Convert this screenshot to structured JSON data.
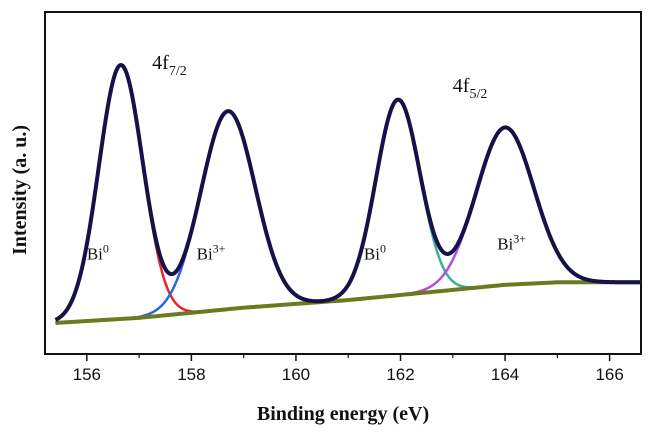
{
  "chart_data": {
    "type": "line",
    "title": "",
    "xlabel": "Binding energy (eV)",
    "ylabel": "Intensity (a. u.)",
    "xlim": [
      155.2,
      166.6
    ],
    "ylim": [
      0,
      1.15
    ],
    "xticks": [
      156,
      158,
      160,
      162,
      164,
      166
    ],
    "grid": false,
    "yticks_visible": false,
    "peaks": [
      {
        "name": "Bi0 4f7/2",
        "center": 156.65,
        "height": 1.0,
        "sigma": 0.42,
        "color": "#e8252c"
      },
      {
        "name": "Bi3+ 4f7/2",
        "center": 158.7,
        "height": 0.78,
        "sigma": 0.52,
        "color": "#2f64e0"
      },
      {
        "name": "Bi0 4f5/2",
        "center": 161.95,
        "height": 0.77,
        "sigma": 0.42,
        "color": "#3fae9a"
      },
      {
        "name": "Bi3+ 4f5/2",
        "center": 164.0,
        "height": 0.62,
        "sigma": 0.55,
        "color": "#b14fe0"
      }
    ],
    "background": {
      "x": [
        155.4,
        157.0,
        158.0,
        159.0,
        160.0,
        161.0,
        162.0,
        163.0,
        164.0,
        165.0,
        166.0,
        166.6
      ],
      "y": [
        0.02,
        0.04,
        0.06,
        0.08,
        0.095,
        0.11,
        0.13,
        0.15,
        0.17,
        0.18,
        0.18,
        0.18
      ],
      "color": "#6b7a1e"
    },
    "envelope_color": "#15124a",
    "annotations": [
      {
        "base": "4f",
        "sub": "7/2",
        "x": 157.25,
        "y": 1.02,
        "size": 20
      },
      {
        "base": "4f",
        "sub": "5/2",
        "x": 163.0,
        "y": 0.93,
        "size": 20
      },
      {
        "base": "Bi",
        "sup": "0",
        "x": 156.0,
        "y": 0.27,
        "size": 17
      },
      {
        "base": "Bi",
        "sup": "3+",
        "x": 158.1,
        "y": 0.27,
        "size": 17
      },
      {
        "base": "Bi",
        "sup": "0",
        "x": 161.3,
        "y": 0.27,
        "size": 17
      },
      {
        "base": "Bi",
        "sup": "3+",
        "x": 163.85,
        "y": 0.31,
        "size": 17
      }
    ]
  }
}
